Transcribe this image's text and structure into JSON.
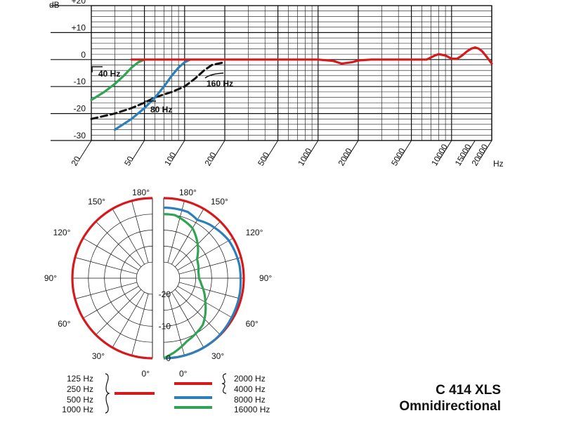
{
  "chart_data": [
    {
      "type": "line",
      "title": "",
      "y_unit": "dB",
      "x_unit": "Hz",
      "x_scale": "log",
      "xlim": [
        20,
        20000
      ],
      "ylim": [
        -30,
        20
      ],
      "x_tick_labels": [
        "20",
        "50",
        "100",
        "200",
        "500",
        "1000",
        "2000",
        "5000",
        "10000",
        "15000",
        "20000"
      ],
      "y_tick_labels": [
        "+20",
        "+10",
        "0",
        "-10",
        "-20",
        "-30"
      ],
      "grid": true,
      "annotations": [
        "40 Hz",
        "80 Hz",
        "160 Hz"
      ],
      "series": [
        {
          "color": "#d7191c",
          "style": "solid",
          "x": [
            40,
            100,
            500,
            800,
            1000,
            1300,
            1500,
            1800,
            2000,
            2500,
            3000,
            5000,
            6500,
            7500,
            8000,
            9000,
            10000,
            11000,
            12000,
            13000,
            14000,
            15000,
            16000,
            17000,
            18000,
            19000,
            20000
          ],
          "y": [
            0,
            0,
            0,
            0,
            0,
            -0.5,
            -1.5,
            -1,
            -0.3,
            0,
            0,
            0,
            0,
            1.5,
            2,
            1.5,
            0.3,
            0.3,
            1.5,
            3,
            4,
            4.5,
            4,
            3,
            1.5,
            0,
            -1.5
          ]
        },
        {
          "color": "#2c7fb8",
          "style": "solid",
          "x": [
            30,
            40,
            50,
            60,
            70,
            80,
            90,
            100,
            110
          ],
          "y": [
            -26,
            -22,
            -18,
            -14,
            -10,
            -6,
            -3,
            -1,
            0
          ]
        },
        {
          "color": "#31a354",
          "style": "solid",
          "x": [
            20,
            25,
            30,
            35,
            40,
            45,
            50
          ],
          "y": [
            -15,
            -12,
            -9,
            -6,
            -3,
            -1,
            0
          ]
        },
        {
          "color": "#111111",
          "style": "dashed",
          "x": [
            20,
            30,
            40,
            50,
            60,
            80,
            100,
            120,
            140,
            160,
            200
          ],
          "y": [
            -22,
            -20,
            -18,
            -16,
            -14,
            -12,
            -10,
            -7,
            -4,
            -2,
            -1
          ]
        }
      ]
    },
    {
      "type": "polar",
      "angle_labels": {
        "left": [
          "180°",
          "150°",
          "120°",
          "90°",
          "60°",
          "30°",
          "0°"
        ],
        "right": [
          "180°",
          "150°",
          "120°",
          "90°",
          "60°",
          "30°",
          "0°"
        ]
      },
      "radial_tick_labels": [
        "-20",
        "-10",
        "0"
      ],
      "radial_range_db": [
        -25,
        0
      ],
      "series": [
        {
          "side": "left",
          "color": "#d7191c",
          "angles": [
            0,
            30,
            60,
            90,
            120,
            150,
            180
          ],
          "db": [
            0,
            0,
            0,
            0,
            0,
            0,
            0
          ]
        },
        {
          "side": "right",
          "color": "#d7191c",
          "angles": [
            0,
            30,
            60,
            90,
            120,
            150,
            180
          ],
          "db": [
            0,
            0,
            0,
            0,
            0,
            0,
            0
          ]
        },
        {
          "side": "right",
          "color": "#2c7fb8",
          "angles": [
            0,
            20,
            40,
            60,
            80,
            90,
            100,
            120,
            140,
            150,
            160,
            180
          ],
          "db": [
            0,
            0,
            0,
            -0.5,
            -0.8,
            -1,
            -1,
            -1.5,
            -3,
            -4,
            -3,
            -3
          ]
        },
        {
          "side": "right",
          "color": "#31a354",
          "angles": [
            0,
            10,
            20,
            40,
            60,
            80,
            90,
            100,
            120,
            140,
            150,
            160,
            170,
            180
          ],
          "db": [
            0,
            -2,
            -4,
            -6,
            -10,
            -13,
            -14,
            -14,
            -13,
            -9,
            -7,
            -6,
            -5,
            -5
          ]
        }
      ]
    }
  ],
  "legend": {
    "left_labels": [
      "125 Hz",
      "250 Hz",
      "500 Hz",
      "1000 Hz"
    ],
    "right_labels": [
      "2000 Hz",
      "4000 Hz",
      "8000 Hz",
      "16000 Hz"
    ],
    "colors": [
      "#d7191c",
      "#d7191c",
      "#2c7fb8",
      "#31a354"
    ]
  },
  "product": {
    "model": "C 414 XLS",
    "pattern": "Omnidirectional"
  }
}
